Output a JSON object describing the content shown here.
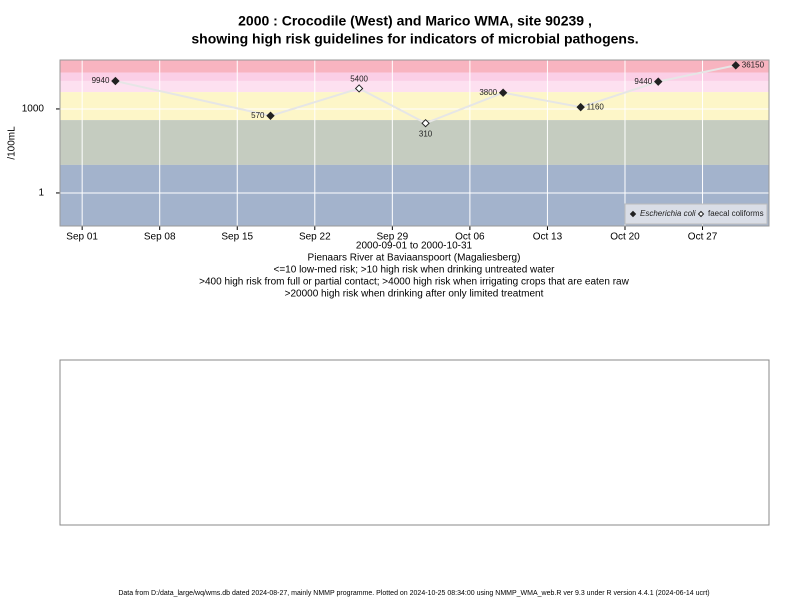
{
  "chart_data": {
    "type": "line",
    "title_lines": [
      "2000 : Crocodile (West) and Marico WMA, site 90239 ,",
      "showing high risk guidelines for indicators of microbial pathogens."
    ],
    "y_label": "/100mL",
    "x_label": "2000-09-01 to 2000-10-31",
    "subtitle_lines": [
      "Pienaars River at Baviaanspoort (Magaliesberg)",
      "<=10 low-med risk; >10 high risk when drinking untreated water",
      ">400 high risk from full or partial contact; >4000 high risk when irrigating crops that are eaten raw",
      ">20000 high risk when drinking after only limited treatment"
    ],
    "footer": "Data from D:/data_large/wq/wms.db dated 2024-08-27, mainly NMMP programme. Plotted on 2024-10-25 08:34:00 using NMMP_WMA_web.R ver 9.3 under R version 4.4.1 (2024-06-14 ucrt)",
    "x": [
      "2000-09-04",
      "2000-09-18",
      "2000-09-26",
      "2000-10-02",
      "2000-10-09",
      "2000-10-16",
      "2000-10-23",
      "2000-10-30"
    ],
    "values": [
      9940,
      570,
      5400,
      310,
      3800,
      1160,
      9440,
      36150
    ],
    "point_series": [
      0,
      0,
      1,
      1,
      0,
      0,
      0,
      0
    ],
    "series": [
      {
        "name": "Escherichia coli",
        "marker": "filled",
        "color": "#222222"
      },
      {
        "name": "faecal coliforms",
        "marker": "open",
        "color": "#222222"
      }
    ],
    "line_color": "#e6e6e6",
    "log_y": true,
    "ylim": [
      0.066,
      56000
    ],
    "yticks": [
      1,
      1000
    ],
    "xlim": [
      "2000-08-30",
      "2000-11-02"
    ],
    "xticks": [
      {
        "value": "2000-09-01",
        "label": "Sep 01"
      },
      {
        "value": "2000-09-08",
        "label": "Sep 08"
      },
      {
        "value": "2000-09-15",
        "label": "Sep 15"
      },
      {
        "value": "2000-09-22",
        "label": "Sep 22"
      },
      {
        "value": "2000-09-29",
        "label": "Sep 29"
      },
      {
        "value": "2000-10-06",
        "label": "Oct 06"
      },
      {
        "value": "2000-10-13",
        "label": "Oct 13"
      },
      {
        "value": "2000-10-20",
        "label": "Oct 20"
      },
      {
        "value": "2000-10-27",
        "label": "Oct 27"
      }
    ],
    "grid": true,
    "legend_position": "bottom-right",
    "bands": [
      {
        "min": 20000,
        "color": "#f8b4c0"
      },
      {
        "min": 10000,
        "color": "#fbcfe6"
      },
      {
        "min": 4000,
        "color": "#fde0f0"
      },
      {
        "min": 400,
        "color": "#fdf6c8"
      },
      {
        "min": 10,
        "color": "#c5ccc0"
      },
      {
        "color": "#a3b3cc"
      }
    ]
  }
}
